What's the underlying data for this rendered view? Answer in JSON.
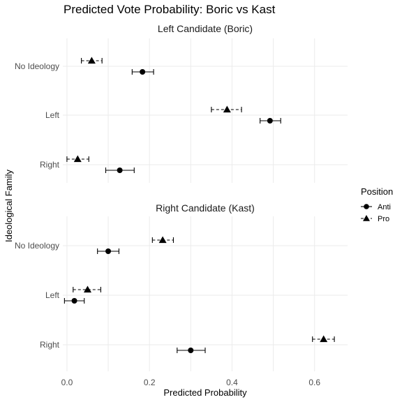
{
  "chart_data": {
    "type": "scatter",
    "title": "Predicted Vote Probability: Boric vs Kast",
    "xlabel": "Predicted Probability",
    "ylabel": "Ideological Family",
    "xlim": [
      -0.01,
      0.68
    ],
    "x_ticks": [
      0.0,
      0.2,
      0.4,
      0.6
    ],
    "x_tick_labels": [
      "0.0",
      "0.2",
      "0.4",
      "0.6"
    ],
    "categories": [
      "No Ideology",
      "Left",
      "Right"
    ],
    "legend": {
      "title": "Position",
      "placement": "right",
      "entries": [
        {
          "label": "Anti",
          "shape": "circle",
          "line": "solid"
        },
        {
          "label": "Pro",
          "shape": "triangle",
          "line": "dashed"
        }
      ]
    },
    "panels": [
      {
        "title": "Left Candidate (Boric)",
        "series": [
          {
            "name": "Anti",
            "points": [
              {
                "category": "No Ideology",
                "x": 0.183,
                "lo": 0.158,
                "hi": 0.21
              },
              {
                "category": "Left",
                "x": 0.492,
                "lo": 0.468,
                "hi": 0.518
              },
              {
                "category": "Right",
                "x": 0.128,
                "lo": 0.094,
                "hi": 0.163
              }
            ]
          },
          {
            "name": "Pro",
            "points": [
              {
                "category": "No Ideology",
                "x": 0.06,
                "lo": 0.035,
                "hi": 0.085
              },
              {
                "category": "Left",
                "x": 0.388,
                "lo": 0.35,
                "hi": 0.423
              },
              {
                "category": "Right",
                "x": 0.026,
                "lo": 0.0,
                "hi": 0.053
              }
            ]
          }
        ]
      },
      {
        "title": "Right Candidate (Kast)",
        "series": [
          {
            "name": "Anti",
            "points": [
              {
                "category": "No Ideology",
                "x": 0.1,
                "lo": 0.074,
                "hi": 0.126
              },
              {
                "category": "Left",
                "x": 0.018,
                "lo": -0.006,
                "hi": 0.042
              },
              {
                "category": "Right",
                "x": 0.3,
                "lo": 0.267,
                "hi": 0.335
              }
            ]
          },
          {
            "name": "Pro",
            "points": [
              {
                "category": "No Ideology",
                "x": 0.232,
                "lo": 0.207,
                "hi": 0.258
              },
              {
                "category": "Left",
                "x": 0.05,
                "lo": 0.015,
                "hi": 0.082
              },
              {
                "category": "Right",
                "x": 0.622,
                "lo": 0.595,
                "hi": 0.648
              }
            ]
          }
        ]
      }
    ]
  }
}
